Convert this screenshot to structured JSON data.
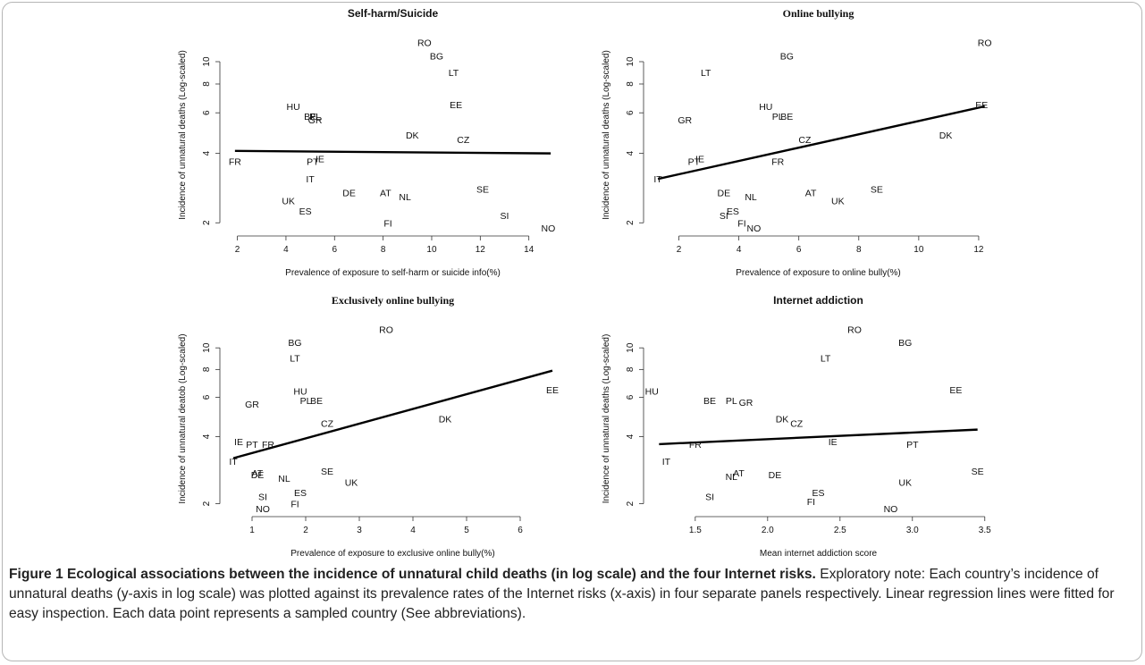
{
  "figure": {
    "caption_title": "Figure 1 Ecological associations between the incidence of unnatural child deaths (in log scale) and the four Internet risks.",
    "caption_body": " Exploratory note: Each country’s incidence of unnatural deaths (y-axis in log scale) was plotted against its prevalence rates of the Internet risks (x-axis) in four separate panels respectively. Linear regression lines were fitted for easy inspection. Each data point represents a sampled country (See abbreviations)."
  },
  "chart_data": [
    {
      "type": "scatter",
      "title": "Self-harm/Suicide",
      "xlabel": "Prevalence of exposure to self-harm or suicide info(%)",
      "ylabel": "Incidence of unnatural deaths (Log-scaled)",
      "yscale": "log",
      "xlim": [
        1.5,
        15.3
      ],
      "ylim": [
        1.85,
        12.5
      ],
      "xticks": [
        2,
        4,
        6,
        8,
        10,
        12,
        14
      ],
      "yticks": [
        2,
        4,
        6,
        8,
        10
      ],
      "points": [
        {
          "label": "RO",
          "x": 9.7,
          "y": 12.1
        },
        {
          "label": "BG",
          "x": 10.2,
          "y": 10.6
        },
        {
          "label": "LT",
          "x": 10.9,
          "y": 9.0
        },
        {
          "label": "HU",
          "x": 4.3,
          "y": 6.4
        },
        {
          "label": "BE",
          "x": 5.0,
          "y": 5.8
        },
        {
          "label": "PL",
          "x": 5.2,
          "y": 5.8
        },
        {
          "label": "GR",
          "x": 5.2,
          "y": 5.6
        },
        {
          "label": "EE",
          "x": 11.0,
          "y": 6.5
        },
        {
          "label": "DK",
          "x": 9.2,
          "y": 4.8
        },
        {
          "label": "CZ",
          "x": 11.3,
          "y": 4.6
        },
        {
          "label": "FR",
          "x": 1.9,
          "y": 3.7
        },
        {
          "label": "PT",
          "x": 5.1,
          "y": 3.7
        },
        {
          "label": "IE",
          "x": 5.4,
          "y": 3.8
        },
        {
          "label": "IT",
          "x": 5.0,
          "y": 3.1
        },
        {
          "label": "DE",
          "x": 6.6,
          "y": 2.7
        },
        {
          "label": "AT",
          "x": 8.1,
          "y": 2.7
        },
        {
          "label": "NL",
          "x": 8.9,
          "y": 2.6
        },
        {
          "label": "SE",
          "x": 12.1,
          "y": 2.8
        },
        {
          "label": "UK",
          "x": 4.1,
          "y": 2.5
        },
        {
          "label": "ES",
          "x": 4.8,
          "y": 2.25
        },
        {
          "label": "SI",
          "x": 13.0,
          "y": 2.15
        },
        {
          "label": "FI",
          "x": 8.2,
          "y": 2.0
        },
        {
          "label": "NO",
          "x": 14.8,
          "y": 1.9
        }
      ],
      "fit": {
        "x": [
          1.9,
          14.9
        ],
        "y": [
          4.1,
          4.0
        ]
      }
    },
    {
      "type": "scatter",
      "title": "Online bullying",
      "xlabel": "Prevalence of exposure to online bully(%)",
      "ylabel": "Incidence of unnatural deaths (Log-scaled)",
      "yscale": "log",
      "xlim": [
        1.0,
        12.3
      ],
      "ylim": [
        1.85,
        12.5
      ],
      "xticks": [
        2,
        4,
        6,
        8,
        10,
        12
      ],
      "yticks": [
        2,
        4,
        6,
        8,
        10
      ],
      "points": [
        {
          "label": "RO",
          "x": 12.2,
          "y": 12.1
        },
        {
          "label": "BG",
          "x": 5.6,
          "y": 10.6
        },
        {
          "label": "LT",
          "x": 2.9,
          "y": 9.0
        },
        {
          "label": "HU",
          "x": 4.9,
          "y": 6.4
        },
        {
          "label": "PL",
          "x": 5.3,
          "y": 5.8
        },
        {
          "label": "BE",
          "x": 5.6,
          "y": 5.8
        },
        {
          "label": "GR",
          "x": 2.2,
          "y": 5.6
        },
        {
          "label": "EE",
          "x": 12.1,
          "y": 6.5
        },
        {
          "label": "DK",
          "x": 10.9,
          "y": 4.8
        },
        {
          "label": "CZ",
          "x": 6.2,
          "y": 4.6
        },
        {
          "label": "FR",
          "x": 5.3,
          "y": 3.7
        },
        {
          "label": "PT",
          "x": 2.5,
          "y": 3.7
        },
        {
          "label": "IE",
          "x": 2.7,
          "y": 3.8
        },
        {
          "label": "IT",
          "x": 1.3,
          "y": 3.1
        },
        {
          "label": "DE",
          "x": 3.5,
          "y": 2.7
        },
        {
          "label": "AT",
          "x": 6.4,
          "y": 2.7
        },
        {
          "label": "NL",
          "x": 4.4,
          "y": 2.6
        },
        {
          "label": "SE",
          "x": 8.6,
          "y": 2.8
        },
        {
          "label": "UK",
          "x": 7.3,
          "y": 2.5
        },
        {
          "label": "ES",
          "x": 3.8,
          "y": 2.25
        },
        {
          "label": "SI",
          "x": 3.5,
          "y": 2.15
        },
        {
          "label": "FI",
          "x": 4.1,
          "y": 2.0
        },
        {
          "label": "NO",
          "x": 4.5,
          "y": 1.9
        }
      ],
      "fit": {
        "x": [
          1.3,
          12.2
        ],
        "y": [
          3.1,
          6.4
        ]
      }
    },
    {
      "type": "scatter",
      "title": "Exclusively online bullying",
      "xlabel": "Prevalence of exposure to exclusive online bully(%)",
      "ylabel": "Incidence of unnatural deatob (Log-scaled)",
      "yscale": "log",
      "xlim": [
        0.5,
        6.75
      ],
      "ylim": [
        1.85,
        12.5
      ],
      "xticks": [
        1,
        2,
        3,
        4,
        5,
        6
      ],
      "yticks": [
        2,
        4,
        6,
        8,
        10
      ],
      "points": [
        {
          "label": "RO",
          "x": 3.5,
          "y": 12.1
        },
        {
          "label": "BG",
          "x": 1.8,
          "y": 10.6
        },
        {
          "label": "LT",
          "x": 1.8,
          "y": 9.0
        },
        {
          "label": "HU",
          "x": 1.9,
          "y": 6.4
        },
        {
          "label": "PL",
          "x": 2.0,
          "y": 5.8
        },
        {
          "label": "BE",
          "x": 2.2,
          "y": 5.8
        },
        {
          "label": "GR",
          "x": 1.0,
          "y": 5.6
        },
        {
          "label": "EE",
          "x": 6.6,
          "y": 6.5
        },
        {
          "label": "DK",
          "x": 4.6,
          "y": 4.8
        },
        {
          "label": "CZ",
          "x": 2.4,
          "y": 4.6
        },
        {
          "label": "FR",
          "x": 1.3,
          "y": 3.7
        },
        {
          "label": "PT",
          "x": 1.0,
          "y": 3.7
        },
        {
          "label": "IE",
          "x": 0.75,
          "y": 3.8
        },
        {
          "label": "IT",
          "x": 0.65,
          "y": 3.1
        },
        {
          "label": "DE",
          "x": 1.1,
          "y": 2.7
        },
        {
          "label": "AT",
          "x": 1.1,
          "y": 2.75
        },
        {
          "label": "NL",
          "x": 1.6,
          "y": 2.6
        },
        {
          "label": "SE",
          "x": 2.4,
          "y": 2.8
        },
        {
          "label": "UK",
          "x": 2.85,
          "y": 2.5
        },
        {
          "label": "ES",
          "x": 1.9,
          "y": 2.25
        },
        {
          "label": "SI",
          "x": 1.2,
          "y": 2.15
        },
        {
          "label": "FI",
          "x": 1.8,
          "y": 2.0
        },
        {
          "label": "NO",
          "x": 1.2,
          "y": 1.9
        }
      ],
      "fit": {
        "x": [
          0.65,
          6.6
        ],
        "y": [
          3.2,
          7.9
        ]
      }
    },
    {
      "type": "scatter",
      "title": "Internet addiction",
      "xlabel": "Mean internet addiction score",
      "ylabel": "Incidence of unnatural deaths (Log-scaled)",
      "yscale": "log",
      "xlim": [
        1.18,
        3.52
      ],
      "ylim": [
        1.85,
        12.5
      ],
      "xticks": [
        1.5,
        2.0,
        2.5,
        3.0,
        3.5
      ],
      "xtick_labels": [
        "1.5",
        "2.0",
        "2.5",
        "3.0",
        "3.5"
      ],
      "yticks": [
        2,
        4,
        6,
        8,
        10
      ],
      "points": [
        {
          "label": "RO",
          "x": 2.6,
          "y": 12.1
        },
        {
          "label": "BG",
          "x": 2.95,
          "y": 10.6
        },
        {
          "label": "LT",
          "x": 2.4,
          "y": 9.0
        },
        {
          "label": "HU",
          "x": 1.2,
          "y": 6.4
        },
        {
          "label": "BE",
          "x": 1.6,
          "y": 5.8
        },
        {
          "label": "PL",
          "x": 1.75,
          "y": 5.8
        },
        {
          "label": "GR",
          "x": 1.85,
          "y": 5.7
        },
        {
          "label": "EE",
          "x": 3.3,
          "y": 6.5
        },
        {
          "label": "DK",
          "x": 2.1,
          "y": 4.8
        },
        {
          "label": "CZ",
          "x": 2.2,
          "y": 4.6
        },
        {
          "label": "FR",
          "x": 1.5,
          "y": 3.7
        },
        {
          "label": "PT",
          "x": 3.0,
          "y": 3.7
        },
        {
          "label": "IE",
          "x": 2.45,
          "y": 3.8
        },
        {
          "label": "IT",
          "x": 1.3,
          "y": 3.1
        },
        {
          "label": "DE",
          "x": 2.05,
          "y": 2.7
        },
        {
          "label": "AT",
          "x": 1.8,
          "y": 2.75
        },
        {
          "label": "NL",
          "x": 1.75,
          "y": 2.65
        },
        {
          "label": "SE",
          "x": 3.45,
          "y": 2.8
        },
        {
          "label": "UK",
          "x": 2.95,
          "y": 2.5
        },
        {
          "label": "ES",
          "x": 2.35,
          "y": 2.25
        },
        {
          "label": "SI",
          "x": 1.6,
          "y": 2.15
        },
        {
          "label": "FI",
          "x": 2.3,
          "y": 2.05
        },
        {
          "label": "NO",
          "x": 2.85,
          "y": 1.9
        }
      ],
      "fit": {
        "x": [
          1.25,
          3.45
        ],
        "y": [
          3.7,
          4.3
        ]
      }
    }
  ]
}
